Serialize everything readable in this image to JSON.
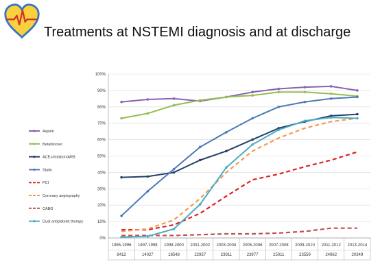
{
  "title": "Treatments at NSTEMI diagnosis and at discharge",
  "logo": {
    "icon": "heart-ecg-logo",
    "colors": {
      "heart": "#f7d23c",
      "outline": "#3a74c4",
      "pulse": "#d62d2d"
    }
  },
  "chart_data": {
    "type": "line",
    "categories": [
      "1995-1996",
      "1997-1998",
      "1999-2000",
      "2001-2002",
      "2003-2004",
      "2005-2006",
      "2007-2008",
      "2009-2010",
      "2011-2012",
      "2013-2014"
    ],
    "n_values": [
      "8412",
      "14027",
      "18548",
      "22937",
      "23911",
      "23977",
      "25011",
      "23559",
      "24962",
      "20349"
    ],
    "yticks": [
      "0%",
      "10%",
      "20%",
      "30%",
      "40%",
      "50%",
      "60%",
      "70%",
      "80%",
      "90%",
      "100%"
    ],
    "ylim": [
      0,
      100
    ],
    "grid": true,
    "legend_position": "left",
    "series": [
      {
        "name": "Aspirin",
        "color": "#8a5fb0",
        "dash": "solid",
        "values": [
          83,
          84.5,
          85,
          83.5,
          86,
          89,
          91,
          92,
          92.5,
          90
        ]
      },
      {
        "name": "Betablocker",
        "color": "#95bd52",
        "dash": "solid",
        "values": [
          73,
          76,
          81,
          84,
          86,
          87,
          89,
          89,
          88,
          86.5
        ]
      },
      {
        "name": "ACE-inhibition/ARB",
        "color": "#243f66",
        "dash": "solid",
        "values": [
          37,
          37.5,
          40,
          47.5,
          53,
          60,
          67,
          71,
          74.5,
          75.5
        ]
      },
      {
        "name": "Statin",
        "color": "#4a78b8",
        "dash": "solid",
        "values": [
          13.5,
          28.5,
          42,
          55.5,
          64.5,
          73,
          80,
          83,
          85,
          86
        ]
      },
      {
        "name": "PCI",
        "color": "#dd2222",
        "dash": "dashed",
        "values": [
          5,
          5,
          8,
          15,
          25.5,
          35.5,
          39,
          43.5,
          47.5,
          52.5
        ]
      },
      {
        "name": "Coronary angiography",
        "color": "#f39a4e",
        "dash": "dashed",
        "values": [
          4,
          5.5,
          11,
          24,
          40,
          53,
          61,
          67,
          71,
          73
        ]
      },
      {
        "name": "CABG",
        "color": "#c0504d",
        "dash": "dashed",
        "values": [
          1.5,
          1.5,
          1.5,
          2,
          2.5,
          2.5,
          3,
          4,
          6,
          6
        ]
      },
      {
        "name": "Dual antiplatelet therapy",
        "color": "#4bacc6",
        "dash": "solid",
        "values": [
          0.5,
          1,
          5.5,
          20.5,
          43,
          57,
          66,
          71.5,
          73.5,
          73
        ]
      }
    ]
  }
}
